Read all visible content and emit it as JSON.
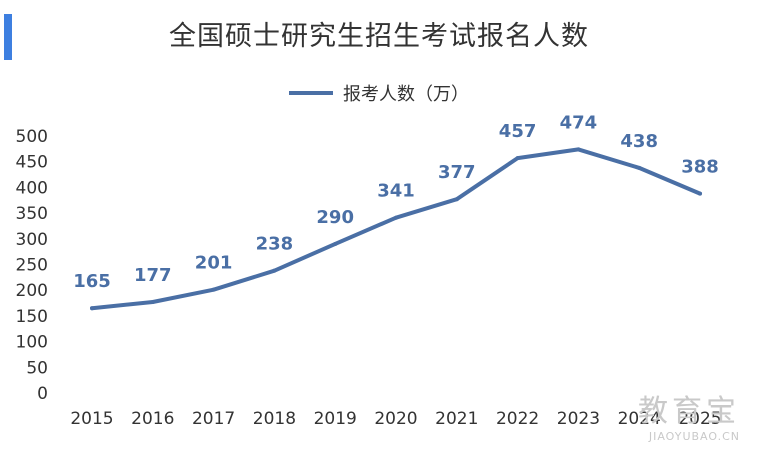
{
  "title": "全国硕士研究生招生考试报名人数",
  "legend": {
    "label": "报考人数（万）"
  },
  "colors": {
    "line": "#4a6fa5",
    "label": "#4a6fa5",
    "accent": "#3d7fe0",
    "axis_text": "#333333",
    "stem": "#a9c3e3"
  },
  "watermark": {
    "main": "教育宝",
    "sub": "JIAOYUBAO.CN"
  },
  "chart_data": {
    "type": "line",
    "title": "全国硕士研究生招生考试报名人数",
    "categories": [
      "2015",
      "2016",
      "2017",
      "2018",
      "2019",
      "2020",
      "2021",
      "2022",
      "2023",
      "2024",
      "2025"
    ],
    "series": [
      {
        "name": "报考人数（万）",
        "values": [
          165,
          177,
          201,
          238,
          290,
          341,
          377,
          457,
          474,
          438,
          388
        ]
      }
    ],
    "y_ticks": [
      0,
      50,
      100,
      150,
      200,
      250,
      300,
      350,
      400,
      450,
      500
    ],
    "ylim": [
      0,
      500
    ],
    "xlabel": "",
    "ylabel": "",
    "grid": false,
    "legend_position": "top-center",
    "data_labels": true
  }
}
